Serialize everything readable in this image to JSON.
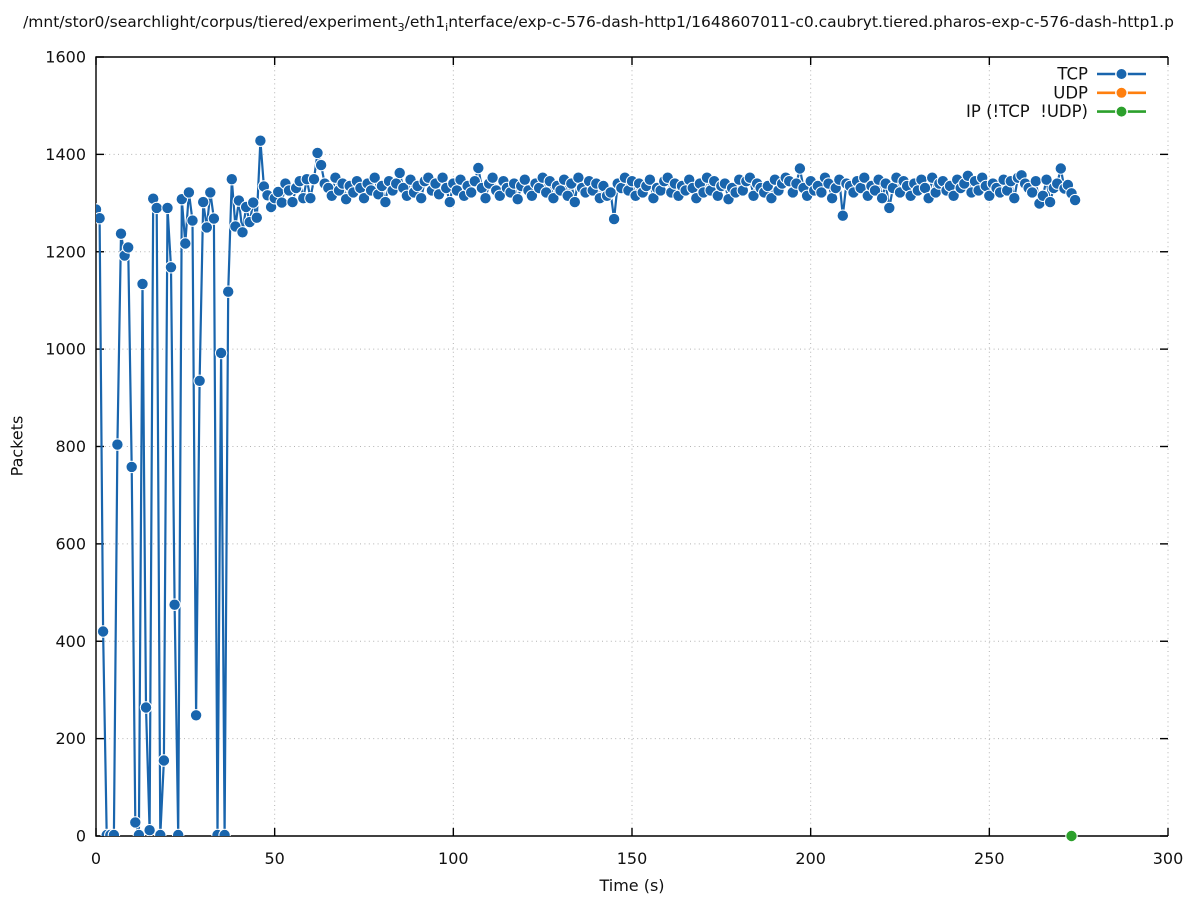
{
  "title": {
    "runs": [
      {
        "text": "/mnt/stor0/searchlight/corpus/tiered/experiment",
        "sub": false
      },
      {
        "text": "3",
        "sub": true
      },
      {
        "text": "/eth1",
        "sub": false
      },
      {
        "text": "i",
        "sub": true
      },
      {
        "text": "nterface/exp-c-576-dash-http1/1648607011-c0.caubryt.tiered.pharos-exp-c-576-dash-http1.p",
        "sub": false
      }
    ]
  },
  "chart_data": {
    "type": "line",
    "title": "/mnt/stor0/searchlight/corpus/tiered/experiment_3/eth1_interface/exp-c-576-dash-http1/1648607011-c0.caubryt.tiered.pharos-exp-c-576-dash-http1.p",
    "xlabel": "Time (s)",
    "ylabel": "Packets",
    "xlim": [
      0,
      300
    ],
    "ylim": [
      0,
      1600
    ],
    "xticks": [
      0,
      50,
      100,
      150,
      200,
      250,
      300
    ],
    "yticks": [
      0,
      200,
      400,
      600,
      800,
      1000,
      1200,
      1400,
      1600
    ],
    "grid": true,
    "legend_position": "top-right-inside",
    "marker_style": "filled-circle-with-line",
    "series": [
      {
        "id": "tcp",
        "name": "TCP",
        "color": "#1965ad",
        "clip": true,
        "x_start": 0,
        "x_step": 1,
        "values": [
          1287,
          1269,
          420,
          2,
          2,
          2,
          804,
          1237,
          1192,
          1209,
          758,
          28,
          2,
          1134,
          264,
          12,
          1309,
          1290,
          2,
          155,
          1290,
          1168,
          475,
          2,
          1308,
          1217,
          1322,
          1264,
          248,
          935,
          1302,
          1250,
          1322,
          1268,
          2,
          992,
          2,
          1118,
          1349,
          1252,
          1305,
          1240,
          1292,
          1261,
          1301,
          1270,
          1428,
          1334,
          1316,
          1292,
          1310,
          1323,
          1301,
          1340,
          1326,
          1302,
          1331,
          1345,
          1310,
          1349,
          1310,
          1349,
          1403,
          1378,
          1340,
          1331,
          1315,
          1352,
          1326,
          1340,
          1308,
          1335,
          1322,
          1345,
          1331,
          1310,
          1340,
          1326,
          1352,
          1318,
          1335,
          1302,
          1345,
          1326,
          1340,
          1362,
          1331,
          1315,
          1348,
          1322,
          1335,
          1310,
          1345,
          1352,
          1326,
          1340,
          1318,
          1352,
          1331,
          1302,
          1340,
          1326,
          1348,
          1315,
          1335,
          1322,
          1345,
          1372,
          1331,
          1310,
          1340,
          1352,
          1326,
          1315,
          1345,
          1331,
          1322,
          1340,
          1308,
          1335,
          1348,
          1326,
          1315,
          1340,
          1331,
          1352,
          1322,
          1345,
          1310,
          1335,
          1326,
          1348,
          1315,
          1340,
          1302,
          1352,
          1331,
          1322,
          1345,
          1326,
          1340,
          1310,
          1335,
          1315,
          1322,
          1267,
          1340,
          1331,
          1352,
          1326,
          1345,
          1315,
          1340,
          1322,
          1335,
          1348,
          1310,
          1331,
          1326,
          1345,
          1352,
          1322,
          1340,
          1315,
          1335,
          1326,
          1348,
          1331,
          1310,
          1340,
          1322,
          1352,
          1326,
          1345,
          1315,
          1335,
          1340,
          1308,
          1331,
          1322,
          1348,
          1326,
          1345,
          1352,
          1315,
          1340,
          1331,
          1322,
          1335,
          1310,
          1348,
          1326,
          1340,
          1352,
          1345,
          1322,
          1340,
          1371,
          1331,
          1315,
          1345,
          1326,
          1335,
          1322,
          1352,
          1340,
          1310,
          1331,
          1348,
          1274,
          1340,
          1335,
          1322,
          1345,
          1331,
          1352,
          1315,
          1335,
          1326,
          1348,
          1310,
          1340,
          1290,
          1331,
          1352,
          1322,
          1345,
          1335,
          1315,
          1340,
          1326,
          1348,
          1331,
          1310,
          1352,
          1322,
          1340,
          1345,
          1326,
          1335,
          1315,
          1348,
          1331,
          1340,
          1356,
          1322,
          1345,
          1326,
          1352,
          1335,
          1315,
          1340,
          1331,
          1322,
          1348,
          1326,
          1345,
          1310,
          1352,
          1357,
          1340,
          1331,
          1322,
          1345,
          1299,
          1315,
          1348,
          1302,
          1331,
          1340,
          1371,
          1330,
          1337,
          1320,
          1306
        ]
      },
      {
        "id": "udp",
        "name": "UDP",
        "color": "#ff7f0e",
        "clip": true,
        "points": []
      },
      {
        "id": "ip",
        "name": "IP (!TCP  !UDP)",
        "color": "#2ca02c",
        "clip": false,
        "points": [
          [
            273,
            0
          ]
        ]
      }
    ],
    "colors": {
      "grid": "#b3b3b3",
      "border": "#000000",
      "text": "#111111",
      "background": "#ffffff",
      "marker_edge": "#ffffff"
    }
  }
}
